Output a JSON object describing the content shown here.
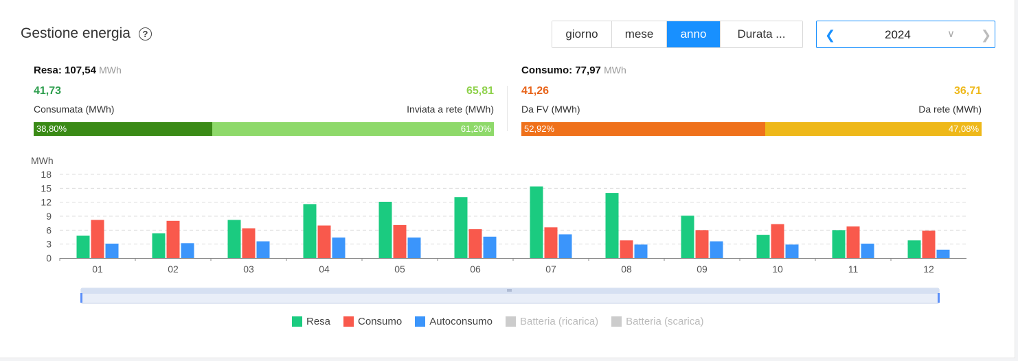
{
  "header": {
    "title": "Gestione energia",
    "help_icon": "question-circle-icon"
  },
  "period_tabs": [
    {
      "label": "giorno",
      "active": false
    },
    {
      "label": "mese",
      "active": false
    },
    {
      "label": "anno",
      "active": true
    },
    {
      "label": "Durata ...",
      "active": false
    }
  ],
  "year_picker": {
    "value": "2024",
    "prev_icon": "chevron-left-icon",
    "dropdown_icon": "chevron-down-icon",
    "next_icon": "chevron-right-icon"
  },
  "resa": {
    "label": "Resa:",
    "total": "107,54",
    "unit": "MWh",
    "left_value": "41,73",
    "left_label": "Consumata (MWh)",
    "right_value": "65,81",
    "right_label": "Inviata a rete (MWh)",
    "left_pct": "38,80%",
    "right_pct": "61,20%",
    "left_fraction": 0.388,
    "left_color": "#3a8a16",
    "right_color": "#8ed96a",
    "left_value_color": "#2e9e4e",
    "right_value_color": "#8ed14a"
  },
  "consumo": {
    "label": "Consumo:",
    "total": "77,97",
    "unit": "MWh",
    "left_value": "41,26",
    "left_label": "Da FV (MWh)",
    "right_value": "36,71",
    "right_label": "Da rete (MWh)",
    "left_pct": "52,92%",
    "right_pct": "47,08%",
    "left_fraction": 0.5292,
    "left_color": "#ef711b",
    "right_color": "#eeb819",
    "left_value_color": "#e8641a",
    "right_value_color": "#eeb819"
  },
  "chart_data": {
    "type": "bar",
    "ylabel": "MWh",
    "ylim": [
      0,
      18
    ],
    "yticks": [
      0,
      3,
      6,
      9,
      12,
      15,
      18
    ],
    "grid": true,
    "categories": [
      "01",
      "02",
      "03",
      "04",
      "05",
      "06",
      "07",
      "08",
      "09",
      "10",
      "11",
      "12"
    ],
    "series": [
      {
        "name": "Resa",
        "color": "#1bcb80",
        "values": [
          4.8,
          5.3,
          8.2,
          11.6,
          12.1,
          13.1,
          15.4,
          14.0,
          9.1,
          5.0,
          6.0,
          3.8
        ]
      },
      {
        "name": "Consumo",
        "color": "#f9594c",
        "values": [
          8.2,
          8.0,
          6.4,
          7.0,
          7.1,
          6.2,
          6.6,
          3.8,
          6.0,
          7.3,
          6.8,
          5.9
        ]
      },
      {
        "name": "Autoconsumo",
        "color": "#3b95fb",
        "values": [
          3.1,
          3.2,
          3.6,
          4.4,
          4.4,
          4.6,
          5.1,
          2.9,
          3.6,
          2.9,
          3.1,
          1.8
        ]
      }
    ],
    "legend_position": "bottom"
  },
  "legend": [
    {
      "label": "Resa",
      "color": "#1bcb80",
      "enabled": true
    },
    {
      "label": "Consumo",
      "color": "#f9594c",
      "enabled": true
    },
    {
      "label": "Autoconsumo",
      "color": "#3b95fb",
      "enabled": true
    },
    {
      "label": "Batteria (ricarica)",
      "color": "#cccccc",
      "enabled": false
    },
    {
      "label": "Batteria (scarica)",
      "color": "#cccccc",
      "enabled": false
    }
  ]
}
